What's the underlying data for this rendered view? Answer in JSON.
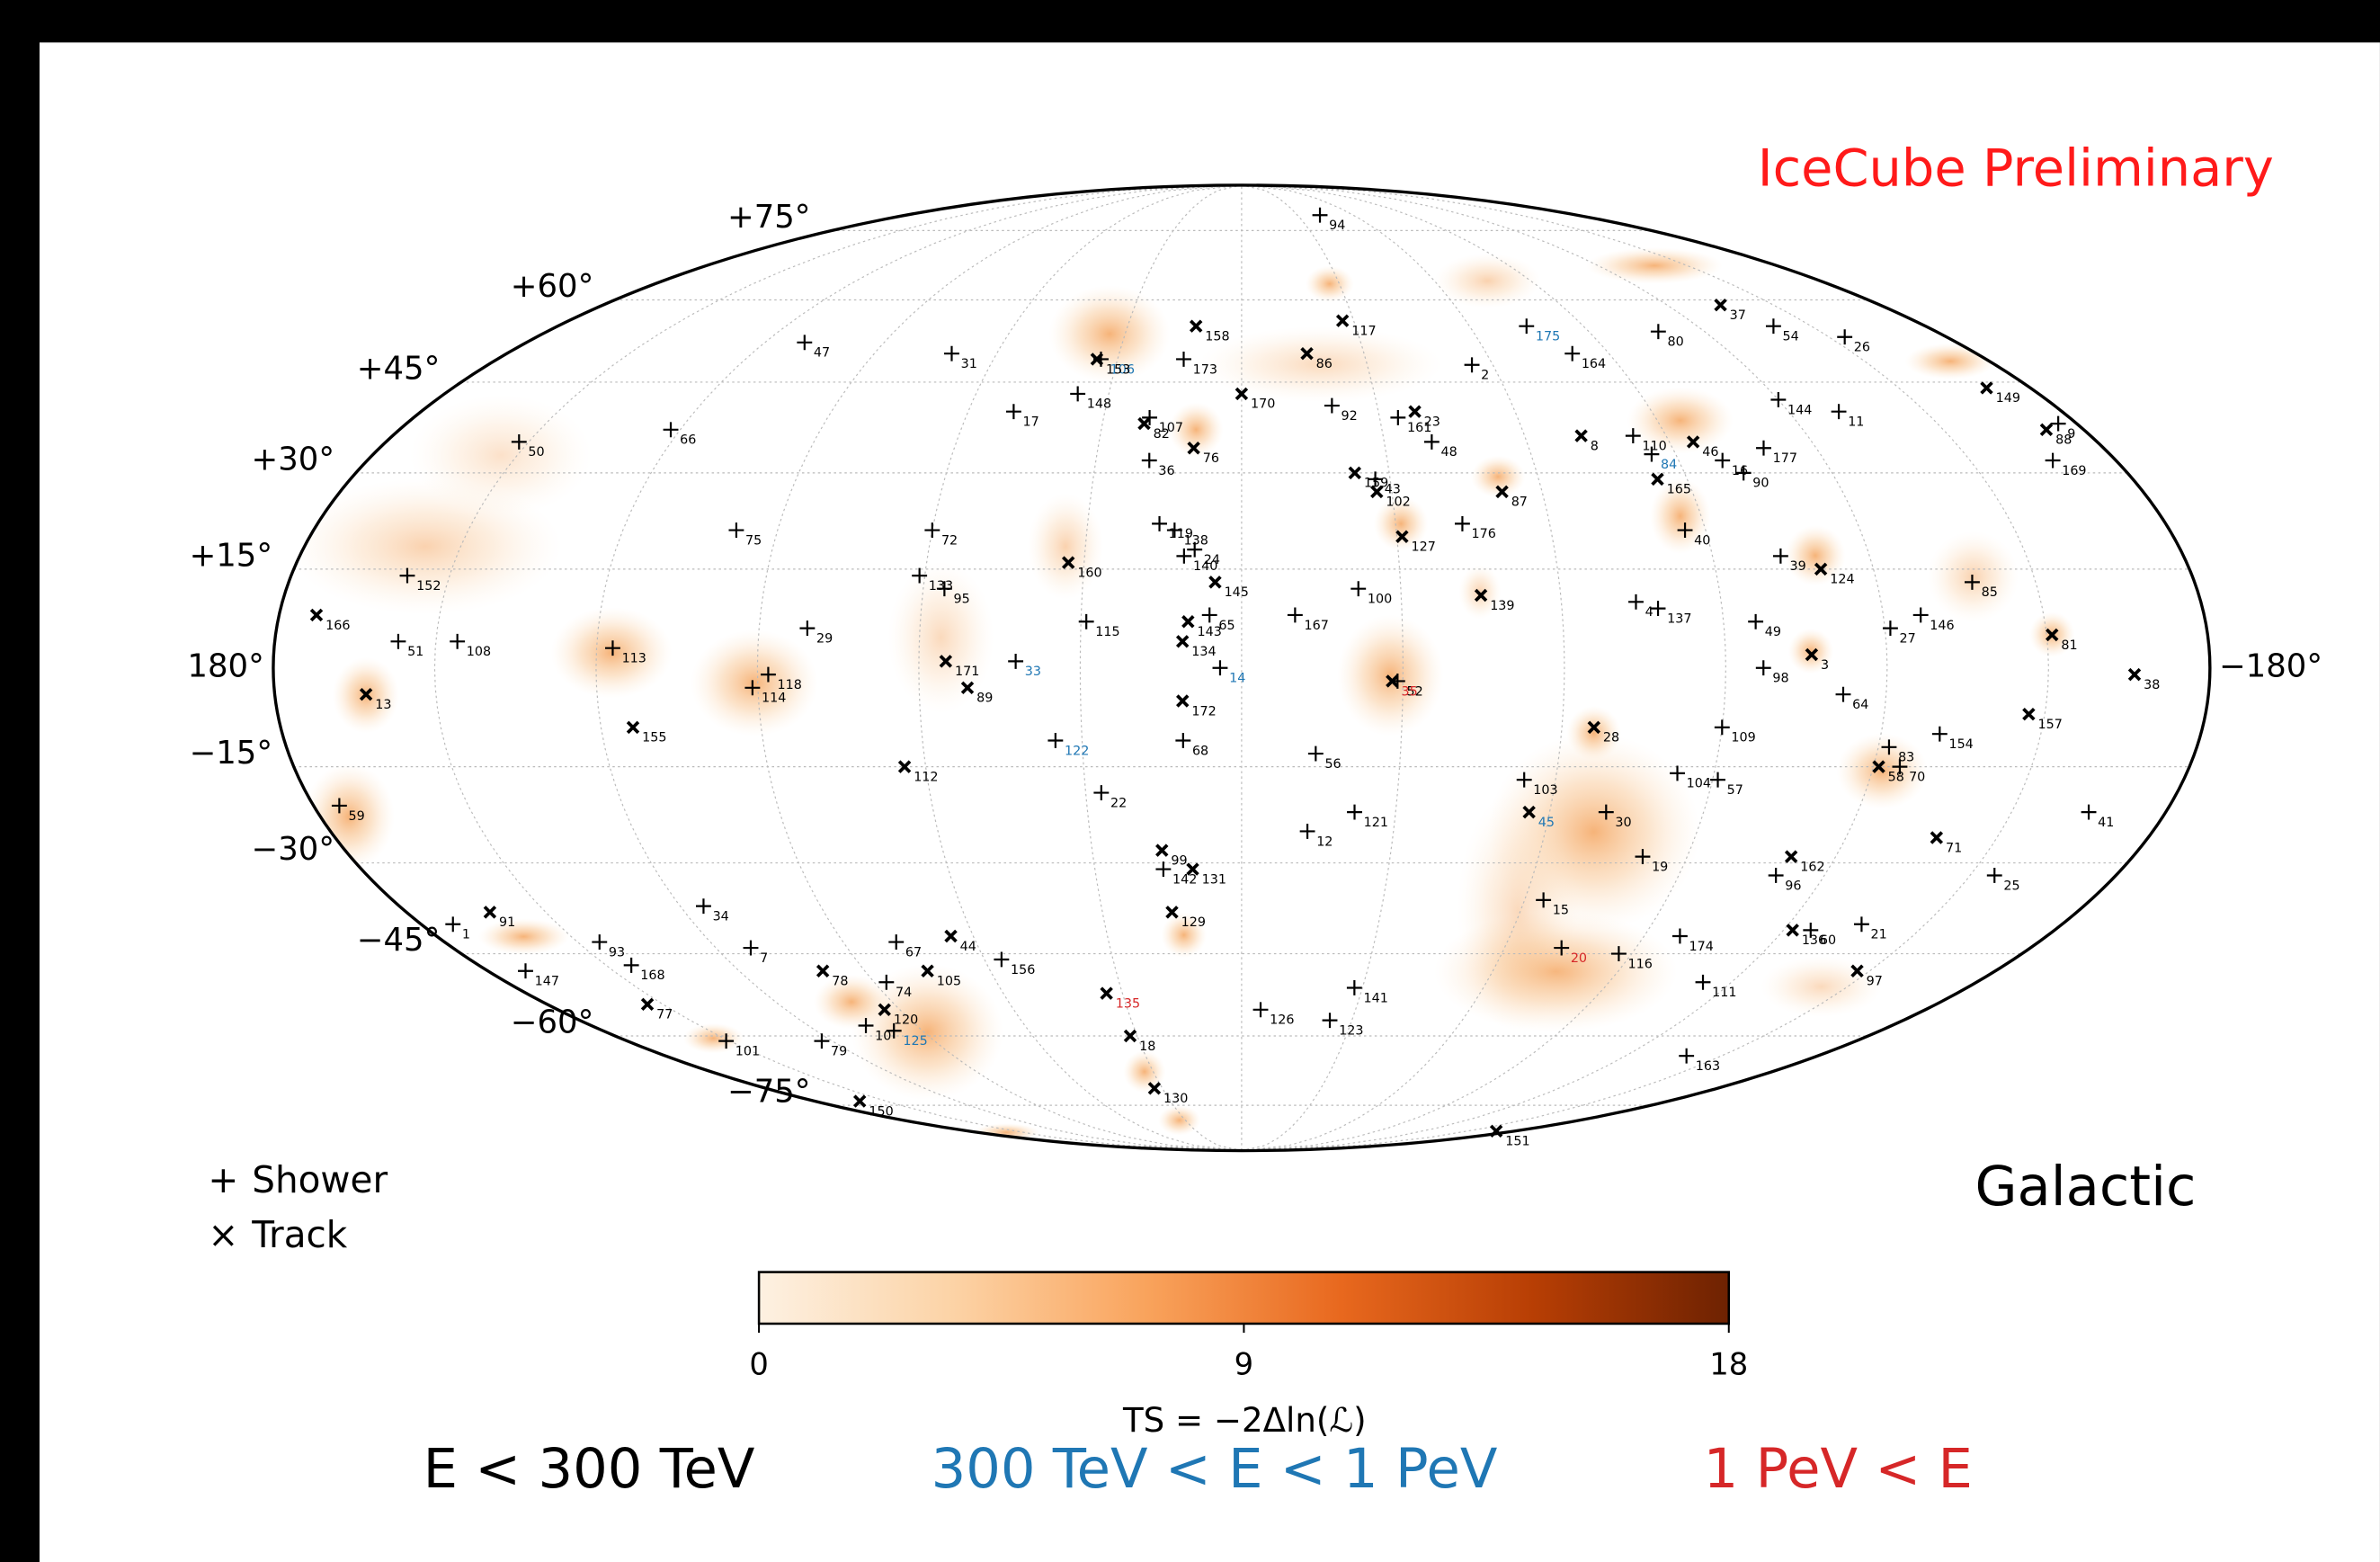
{
  "chart_data": {
    "type": "scatter",
    "projection": "mollweide",
    "title": "IceCube Preliminary",
    "frame_label": "Galactic",
    "xlim": [
      180,
      -180
    ],
    "ylim": [
      -90,
      90
    ],
    "xticks": [
      {
        "value": 180,
        "label": "180°"
      },
      {
        "value": -180,
        "label": "−180°"
      }
    ],
    "yticks": [
      {
        "value": 75,
        "label": "+75°"
      },
      {
        "value": 60,
        "label": "+60°"
      },
      {
        "value": 45,
        "label": "+45°"
      },
      {
        "value": 30,
        "label": "+30°"
      },
      {
        "value": 15,
        "label": "+15°"
      },
      {
        "value": -15,
        "label": "−15°"
      },
      {
        "value": -30,
        "label": "−30°"
      },
      {
        "value": -45,
        "label": "−45°"
      },
      {
        "value": -60,
        "label": "−60°"
      },
      {
        "value": -75,
        "label": "−75°"
      }
    ],
    "meridians": [
      -150,
      -120,
      -90,
      -60,
      -30,
      0,
      30,
      60,
      90,
      120,
      150
    ],
    "grid": true,
    "energy_classes": [
      {
        "name": "E < 300 TeV",
        "color": "#000000"
      },
      {
        "name": "300 TeV < E < 1 PeV",
        "color": "#1f77b4"
      },
      {
        "name": "1 PeV < E",
        "color": "#d62728"
      }
    ],
    "colorbar": {
      "label": "TS = −2Δln(ℒ)",
      "lim": [
        0,
        18
      ],
      "ticks": [
        0,
        9,
        18
      ],
      "colors": [
        "#fdf1e2",
        "#fcd3a6",
        "#f9a35c",
        "#e8681e",
        "#b73e04",
        "#6e2202"
      ]
    },
    "series": [
      {
        "name": "Shower",
        "marker": "+",
        "labels": [
          "94",
          "47",
          "31",
          "106",
          "173",
          "175",
          "80",
          "164",
          "54",
          "26",
          "2",
          "148",
          "17",
          "107",
          "92",
          "161",
          "48",
          "110",
          "144",
          "11",
          "177",
          "84",
          "16",
          "90",
          "9",
          "169",
          "50",
          "66",
          "36",
          "43",
          "176",
          "75",
          "72",
          "119",
          "138",
          "24",
          "140",
          "100",
          "167",
          "40",
          "39",
          "4",
          "137",
          "85",
          "146",
          "27",
          "49",
          "98",
          "64",
          "154",
          "83",
          "70",
          "152",
          "51",
          "108",
          "113",
          "29",
          "118",
          "114",
          "133",
          "95",
          "115",
          "65",
          "33",
          "14",
          "52",
          "122",
          "68",
          "56",
          "22",
          "121",
          "142",
          "12",
          "109",
          "103",
          "104",
          "57",
          "30",
          "19",
          "41",
          "96",
          "25",
          "15",
          "21",
          "60",
          "174",
          "20",
          "116",
          "111",
          "163",
          "141",
          "126",
          "123",
          "156",
          "67",
          "74",
          "10",
          "125",
          "79",
          "101",
          "7",
          "168",
          "93",
          "147",
          "34",
          "1",
          "59"
        ],
        "x": [
          -42,
          110,
          71,
          34,
          14,
          -75,
          -108,
          -81,
          -140,
          -154,
          -55,
          37,
          50,
          20,
          -20,
          -34,
          -40,
          -83,
          -120,
          -131,
          -109,
          -85,
          -99,
          -102,
          -176,
          -167,
          152,
          122,
          19,
          -27,
          -43,
          98,
          60,
          16,
          13,
          9,
          11,
          -22,
          -10,
          -86,
          -103,
          -74,
          -78,
          -138,
          -127,
          -121,
          -96,
          -97,
          -112,
          -131,
          -122,
          -125,
          158,
          157,
          146,
          117,
          81,
          88,
          91,
          61,
          56,
          29,
          6,
          42,
          4,
          -29,
          35,
          11,
          -14,
          27,
          -22,
          16,
          -13,
          -90,
          -54,
          -83,
          -91,
          -71,
          -81,
          -165,
          -110,
          -155,
          -64,
          -136,
          -126,
          -98,
          -73,
          -87,
          -113,
          -139,
          -28,
          -5,
          -24,
          56,
          78,
          87,
          104,
          98,
          123,
          151,
          112,
          144,
          145,
          171,
          115,
          173,
          175
        ],
        "y": [
          79,
          52,
          50,
          49,
          49,
          55,
          54,
          50,
          55,
          53,
          48,
          43,
          40,
          39,
          41,
          39,
          35,
          36,
          42,
          40,
          34,
          33,
          32,
          30,
          38,
          32,
          35,
          37,
          32,
          29,
          22,
          21,
          21,
          22,
          21,
          18,
          17,
          12,
          8,
          21,
          17,
          10,
          9,
          13,
          8,
          6,
          7,
          0,
          -4,
          -10,
          -12,
          -15,
          14,
          4,
          4,
          3,
          6,
          -1,
          -3,
          14,
          12,
          7,
          8,
          1,
          0,
          -2,
          -11,
          -11,
          -13,
          -19,
          -22,
          -31,
          -25,
          -9,
          -17,
          -16,
          -17,
          -22,
          -29,
          -22,
          -32,
          -32,
          -36,
          -40,
          -41,
          -42,
          -44,
          -45,
          -50,
          -64,
          -51,
          -55,
          -57,
          -46,
          -43,
          -50,
          -58,
          -59,
          -61,
          -61,
          -44,
          -47,
          -43,
          -48,
          -37,
          -40,
          -21
        ],
        "energy": [
          0,
          0,
          0,
          1,
          0,
          1,
          0,
          0,
          0,
          0,
          0,
          0,
          0,
          0,
          0,
          0,
          0,
          0,
          0,
          0,
          0,
          1,
          0,
          0,
          0,
          0,
          0,
          0,
          0,
          0,
          0,
          0,
          0,
          0,
          0,
          0,
          0,
          0,
          0,
          0,
          0,
          0,
          0,
          0,
          0,
          0,
          0,
          0,
          0,
          0,
          0,
          0,
          0,
          0,
          0,
          0,
          0,
          0,
          0,
          0,
          0,
          0,
          0,
          1,
          1,
          0,
          1,
          0,
          0,
          0,
          0,
          0,
          0,
          0,
          0,
          0,
          0,
          0,
          0,
          0,
          0,
          0,
          0,
          0,
          0,
          0,
          2,
          0,
          0,
          0,
          0,
          0,
          0,
          0,
          0,
          0,
          0,
          1,
          0,
          0,
          0,
          0,
          0,
          0,
          0,
          0,
          0
        ]
      },
      {
        "name": "Track",
        "marker": "×",
        "labels": [
          "153",
          "158",
          "117",
          "86",
          "37",
          "82",
          "170",
          "23",
          "8",
          "46",
          "165",
          "149",
          "88",
          "76",
          "159",
          "102",
          "87",
          "160",
          "127",
          "145",
          "139",
          "124",
          "81",
          "3",
          "38",
          "157",
          "58",
          "166",
          "13",
          "155",
          "143",
          "134",
          "171",
          "89",
          "172",
          "35",
          "112",
          "99",
          "131",
          "129",
          "28",
          "45",
          "162",
          "71",
          "136",
          "97",
          "151",
          "135",
          "18",
          "130",
          "150",
          "44",
          "105",
          "78",
          "120",
          "91",
          "77"
        ],
        "x": [
          35,
          12,
          -27,
          -16,
          -135,
          21,
          0,
          -38,
          -72,
          -95,
          -84,
          -170,
          -172,
          10,
          -23,
          -27,
          -52,
          33,
          -31,
          5,
          -45,
          -110,
          -151,
          -106,
          -166,
          -147,
          -121,
          173,
          163,
          114,
          10,
          11,
          55,
          51,
          11,
          -28,
          64,
          16,
          10,
          15,
          -66,
          -56,
          -111,
          -138,
          -122,
          -147,
          -168,
          34,
          32,
          33,
          161,
          65,
          75,
          100,
          94,
          162,
          154
        ],
        "y": [
          49,
          55,
          56,
          50,
          59,
          38,
          43,
          40,
          36,
          35,
          29,
          44,
          37,
          34,
          30,
          27,
          27,
          16,
          20,
          13,
          11,
          15,
          5,
          2,
          -1,
          -7,
          -15,
          8,
          -4,
          -9,
          7,
          4,
          1,
          -3,
          -5,
          -2,
          -15,
          -28,
          -31,
          -38,
          -9,
          -22,
          -29,
          -26,
          -41,
          -48,
          -82,
          -52,
          -60,
          -71,
          -74,
          -42,
          -48,
          -48,
          -55,
          -38,
          -54
        ],
        "energy": [
          0,
          0,
          0,
          0,
          0,
          0,
          0,
          0,
          0,
          0,
          0,
          0,
          0,
          0,
          0,
          0,
          0,
          0,
          0,
          0,
          0,
          0,
          0,
          0,
          0,
          0,
          0,
          0,
          0,
          0,
          0,
          0,
          0,
          0,
          0,
          2,
          0,
          0,
          0,
          0,
          0,
          1,
          0,
          0,
          0,
          0,
          0,
          2,
          0,
          0,
          0,
          0,
          0,
          0,
          0,
          0,
          0
        ]
      }
    ]
  }
}
